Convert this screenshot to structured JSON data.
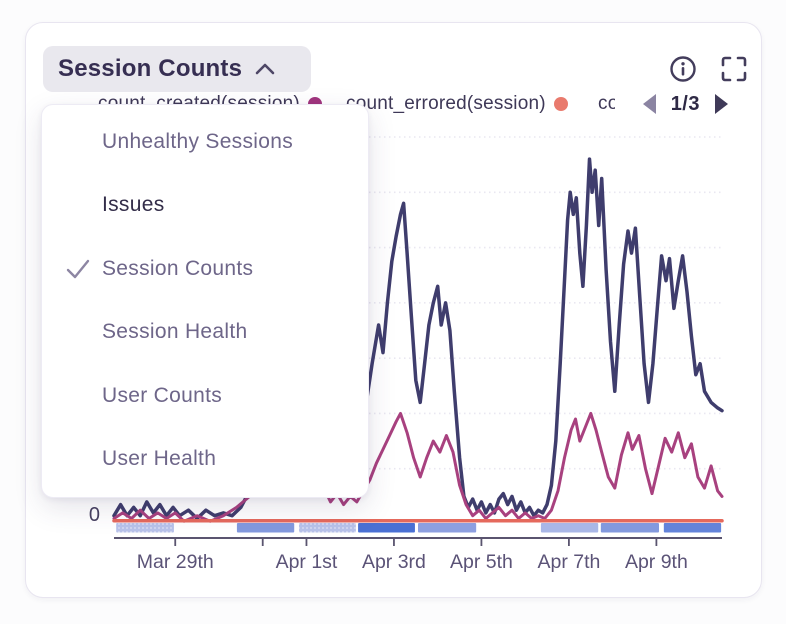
{
  "app": {
    "title_button": {
      "label": "Session Counts",
      "state": "expanded"
    },
    "header_icons": {
      "info": "info-icon",
      "fullscreen": "fullscreen-icon"
    },
    "legend": {
      "items": [
        {
          "label": "count_created(session)",
          "color": "#a1357e"
        },
        {
          "label": "count_errored(session)",
          "color": "#e97a6d"
        },
        {
          "label": "count_crashed(session)",
          "color": "#4a70d4",
          "clipped": true
        }
      ],
      "page_indicator": "1/3"
    },
    "dropdown": {
      "items": [
        {
          "label": "Unhealthy Sessions",
          "selected": false
        },
        {
          "label": "Issues",
          "selected": false,
          "emphasis": true
        },
        {
          "label": "Session Counts",
          "selected": true
        },
        {
          "label": "Session Health",
          "selected": false
        },
        {
          "label": "User Counts",
          "selected": false
        },
        {
          "label": "User Health",
          "selected": false
        }
      ]
    }
  },
  "chart_data": {
    "type": "line",
    "title": "Session Counts",
    "xlabel": "",
    "ylabel": "",
    "x_unit": "days (Mar 27 = 0)",
    "xlim": [
      0.6,
      14.5
    ],
    "ylim": [
      0,
      140
    ],
    "y_zero_label": "0",
    "gridline_values": [
      20,
      40,
      60,
      80,
      100,
      120,
      140
    ],
    "grid": "dotted",
    "legend_position": "top",
    "ticks": [
      {
        "d": 2,
        "label": "Mar 29th"
      },
      {
        "d": 4,
        "label": ""
      },
      {
        "d": 5,
        "label": "Apr 1st"
      },
      {
        "d": 7,
        "label": "Apr 3rd"
      },
      {
        "d": 9,
        "label": "Apr 5th"
      },
      {
        "d": 11,
        "label": "Apr 7th"
      },
      {
        "d": 13,
        "label": "Apr 9th"
      }
    ],
    "series": [
      {
        "name": "sessions (legend on other page)",
        "color": "#3f3d6d",
        "width": 3.5,
        "points": [
          [
            0.6,
            3
          ],
          [
            0.75,
            7
          ],
          [
            0.9,
            3
          ],
          [
            1.05,
            6
          ],
          [
            1.2,
            3
          ],
          [
            1.35,
            8
          ],
          [
            1.5,
            4
          ],
          [
            1.65,
            7
          ],
          [
            1.8,
            3
          ],
          [
            1.95,
            6
          ],
          [
            2.1,
            3
          ],
          [
            2.3,
            5
          ],
          [
            2.5,
            2
          ],
          [
            2.7,
            5
          ],
          [
            2.9,
            3
          ],
          [
            3.1,
            4
          ],
          [
            3.3,
            3
          ],
          [
            3.5,
            6
          ],
          [
            3.7,
            12
          ],
          [
            3.85,
            22
          ],
          [
            4.0,
            30
          ],
          [
            4.1,
            24
          ],
          [
            4.25,
            36
          ],
          [
            4.4,
            28
          ],
          [
            4.55,
            40
          ],
          [
            4.7,
            32
          ],
          [
            4.85,
            42
          ],
          [
            5.0,
            30
          ],
          [
            5.15,
            38
          ],
          [
            5.3,
            24
          ],
          [
            5.45,
            32
          ],
          [
            5.6,
            20
          ],
          [
            5.75,
            26
          ],
          [
            5.9,
            16
          ],
          [
            6.05,
            20
          ],
          [
            6.2,
            28
          ],
          [
            6.35,
            42
          ],
          [
            6.5,
            58
          ],
          [
            6.65,
            72
          ],
          [
            6.75,
            62
          ],
          [
            6.85,
            80
          ],
          [
            6.95,
            95
          ],
          [
            7.05,
            104
          ],
          [
            7.15,
            112
          ],
          [
            7.22,
            116
          ],
          [
            7.3,
            98
          ],
          [
            7.4,
            75
          ],
          [
            7.5,
            52
          ],
          [
            7.6,
            44
          ],
          [
            7.7,
            58
          ],
          [
            7.8,
            72
          ],
          [
            7.9,
            80
          ],
          [
            8.0,
            86
          ],
          [
            8.08,
            72
          ],
          [
            8.18,
            80
          ],
          [
            8.28,
            70
          ],
          [
            8.38,
            48
          ],
          [
            8.5,
            24
          ],
          [
            8.6,
            10
          ],
          [
            8.7,
            6
          ],
          [
            8.8,
            9
          ],
          [
            8.9,
            5
          ],
          [
            9.0,
            8
          ],
          [
            9.1,
            4
          ],
          [
            9.2,
            7
          ],
          [
            9.3,
            4
          ],
          [
            9.4,
            9
          ],
          [
            9.5,
            11
          ],
          [
            9.6,
            7
          ],
          [
            9.7,
            10
          ],
          [
            9.8,
            5
          ],
          [
            9.9,
            8
          ],
          [
            10.0,
            4
          ],
          [
            10.1,
            6
          ],
          [
            10.2,
            3
          ],
          [
            10.3,
            5
          ],
          [
            10.4,
            4
          ],
          [
            10.5,
            7
          ],
          [
            10.6,
            14
          ],
          [
            10.7,
            30
          ],
          [
            10.8,
            58
          ],
          [
            10.9,
            88
          ],
          [
            10.97,
            110
          ],
          [
            11.03,
            120
          ],
          [
            11.1,
            112
          ],
          [
            11.17,
            118
          ],
          [
            11.25,
            98
          ],
          [
            11.32,
            86
          ],
          [
            11.4,
            108
          ],
          [
            11.47,
            132
          ],
          [
            11.53,
            120
          ],
          [
            11.6,
            128
          ],
          [
            11.68,
            108
          ],
          [
            11.75,
            125
          ],
          [
            11.85,
            92
          ],
          [
            11.95,
            66
          ],
          [
            12.05,
            48
          ],
          [
            12.15,
            72
          ],
          [
            12.25,
            94
          ],
          [
            12.35,
            106
          ],
          [
            12.43,
            98
          ],
          [
            12.52,
            107
          ],
          [
            12.62,
            82
          ],
          [
            12.72,
            58
          ],
          [
            12.82,
            44
          ],
          [
            12.92,
            58
          ],
          [
            13.02,
            78
          ],
          [
            13.12,
            97
          ],
          [
            13.22,
            88
          ],
          [
            13.3,
            96
          ],
          [
            13.4,
            78
          ],
          [
            13.5,
            88
          ],
          [
            13.6,
            97
          ],
          [
            13.7,
            84
          ],
          [
            13.8,
            68
          ],
          [
            13.9,
            54
          ],
          [
            14.0,
            58
          ],
          [
            14.1,
            48
          ],
          [
            14.25,
            44
          ],
          [
            14.4,
            42
          ],
          [
            14.5,
            41
          ]
        ]
      },
      {
        "name": "count_created(session)",
        "color": "#a8417f",
        "width": 3,
        "points": [
          [
            0.6,
            2
          ],
          [
            0.8,
            4
          ],
          [
            1.0,
            2
          ],
          [
            1.2,
            5
          ],
          [
            1.4,
            2
          ],
          [
            1.6,
            4
          ],
          [
            1.8,
            2
          ],
          [
            2.0,
            4
          ],
          [
            2.2,
            1
          ],
          [
            2.5,
            3
          ],
          [
            2.8,
            1
          ],
          [
            3.1,
            3
          ],
          [
            3.4,
            6
          ],
          [
            3.7,
            10
          ],
          [
            3.9,
            14
          ],
          [
            4.05,
            10
          ],
          [
            4.2,
            15
          ],
          [
            4.35,
            11
          ],
          [
            4.5,
            16
          ],
          [
            4.65,
            12
          ],
          [
            4.8,
            17
          ],
          [
            4.95,
            12
          ],
          [
            5.1,
            16
          ],
          [
            5.25,
            10
          ],
          [
            5.4,
            13
          ],
          [
            5.55,
            8
          ],
          [
            5.7,
            11
          ],
          [
            5.85,
            7
          ],
          [
            6.0,
            10
          ],
          [
            6.15,
            8
          ],
          [
            6.3,
            12
          ],
          [
            6.45,
            16
          ],
          [
            6.6,
            22
          ],
          [
            6.75,
            27
          ],
          [
            6.9,
            32
          ],
          [
            7.05,
            37
          ],
          [
            7.15,
            40
          ],
          [
            7.3,
            33
          ],
          [
            7.45,
            24
          ],
          [
            7.6,
            17
          ],
          [
            7.75,
            24
          ],
          [
            7.9,
            30
          ],
          [
            8.05,
            26
          ],
          [
            8.2,
            32
          ],
          [
            8.35,
            26
          ],
          [
            8.5,
            14
          ],
          [
            8.65,
            7
          ],
          [
            8.8,
            3
          ],
          [
            8.95,
            5
          ],
          [
            9.1,
            2
          ],
          [
            9.25,
            4
          ],
          [
            9.4,
            6
          ],
          [
            9.55,
            3
          ],
          [
            9.7,
            5
          ],
          [
            9.85,
            2
          ],
          [
            10.0,
            4
          ],
          [
            10.15,
            2
          ],
          [
            10.3,
            3
          ],
          [
            10.45,
            2
          ],
          [
            10.6,
            5
          ],
          [
            10.75,
            12
          ],
          [
            10.9,
            24
          ],
          [
            11.05,
            34
          ],
          [
            11.15,
            38
          ],
          [
            11.25,
            30
          ],
          [
            11.4,
            36
          ],
          [
            11.5,
            40
          ],
          [
            11.62,
            34
          ],
          [
            11.75,
            26
          ],
          [
            11.9,
            17
          ],
          [
            12.05,
            13
          ],
          [
            12.2,
            25
          ],
          [
            12.35,
            33
          ],
          [
            12.45,
            27
          ],
          [
            12.6,
            32
          ],
          [
            12.75,
            20
          ],
          [
            12.9,
            11
          ],
          [
            13.05,
            21
          ],
          [
            13.2,
            31
          ],
          [
            13.35,
            26
          ],
          [
            13.5,
            33
          ],
          [
            13.65,
            24
          ],
          [
            13.8,
            29
          ],
          [
            13.95,
            17
          ],
          [
            14.1,
            13
          ],
          [
            14.25,
            21
          ],
          [
            14.4,
            12
          ],
          [
            14.5,
            10
          ]
        ]
      },
      {
        "name": "count_errored(session)",
        "color": "#e5695c",
        "width": 3.5,
        "points": [
          [
            0.6,
            1.2
          ],
          [
            14.5,
            1.2
          ]
        ]
      }
    ],
    "bands": [
      {
        "from": 0.65,
        "to": 1.97,
        "color": "#b8c2ea",
        "hatch": true
      },
      {
        "from": 3.41,
        "to": 4.72,
        "color": "#8399de",
        "hatch": false
      },
      {
        "from": 4.83,
        "to": 6.13,
        "color": "#b8c2ea",
        "hatch": true
      },
      {
        "from": 6.18,
        "to": 7.48,
        "color": "#4a70d4",
        "hatch": false
      },
      {
        "from": 7.55,
        "to": 8.88,
        "color": "#8d9fe0",
        "hatch": false
      },
      {
        "from": 10.36,
        "to": 11.67,
        "color": "#a9b7e7",
        "hatch": false
      },
      {
        "from": 11.73,
        "to": 13.06,
        "color": "#8399de",
        "hatch": false
      },
      {
        "from": 13.17,
        "to": 14.48,
        "color": "#6383da",
        "hatch": false
      }
    ]
  }
}
